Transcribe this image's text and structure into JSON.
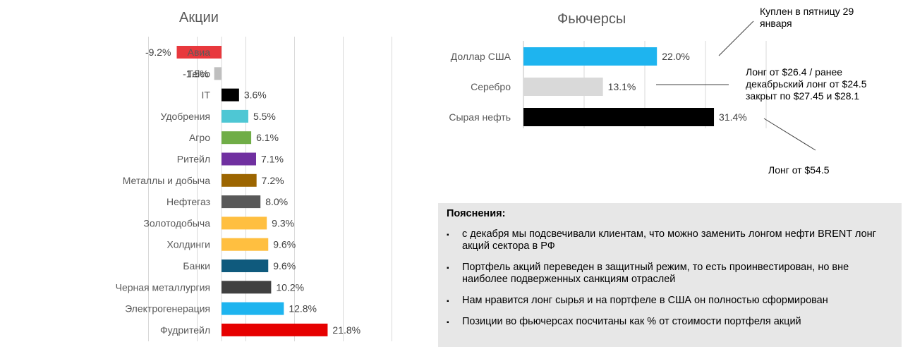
{
  "chart_data": [
    {
      "type": "bar",
      "orientation": "horizontal",
      "title": "Акции",
      "categories": [
        "Авиа",
        "Telco",
        "IT",
        "Удобрения",
        "Агро",
        "Ритейл",
        "Металлы и добыча",
        "Нефтегаз",
        "Золотодобыча",
        "Холдинги",
        "Банки",
        "Черная металлургия",
        "Электрогенерация",
        "Фудритейл"
      ],
      "values": [
        -9.2,
        -1.5,
        3.6,
        5.5,
        6.1,
        7.1,
        7.2,
        8.0,
        9.3,
        9.6,
        9.6,
        10.2,
        12.8,
        21.8
      ],
      "value_labels": [
        "-9.2%",
        "-1.5%",
        "3.6%",
        "5.5%",
        "6.1%",
        "7.1%",
        "7.2%",
        "8.0%",
        "9.3%",
        "9.6%",
        "9.6%",
        "10.2%",
        "12.8%",
        "21.8%"
      ],
      "colors": [
        "#e8383d",
        "#bfbfbf",
        "#000000",
        "#4ec7d4",
        "#70ad47",
        "#7030a0",
        "#9c6500",
        "#595959",
        "#ffbf40",
        "#ffbf40",
        "#0f5a7d",
        "#404040",
        "#1eb4ef",
        "#e60000"
      ],
      "xlim": [
        -15,
        35
      ],
      "grid": true
    },
    {
      "type": "bar",
      "orientation": "horizontal",
      "title": "Фьючерсы",
      "categories": [
        "Доллар США",
        "Серебро",
        "Сырая нефть"
      ],
      "values": [
        22.0,
        13.1,
        31.4
      ],
      "value_labels": [
        "22.0%",
        "13.1%",
        "31.4%"
      ],
      "colors": [
        "#1eb4ef",
        "#d9d9d9",
        "#000000"
      ],
      "xlim": [
        0,
        40
      ],
      "grid": true
    }
  ],
  "callouts": {
    "dollar": "Куплен в пятницу 29 января",
    "silver": "Лонг от $26.4 / ранее декабрьский лонг от $24.5 закрыт по $27.45 и $28.1",
    "oil": "Лонг от $54.5"
  },
  "notes": {
    "title": "Пояснения:",
    "bullet": "▪",
    "items": [
      "с декабря мы подсвечивали клиентам, что можно заменить лонгом нефти BRENT лонг акций сектора в РФ",
      "Портфель акций переведен в защитный режим, то есть проинвестирован, но вне наиболее подверженных санкциям отраслей",
      "Нам нравится лонг сырья и на портфеле в США он полностью сформирован",
      "Позиции во фьючерсах посчитаны как % от стоимости портфеля акций"
    ]
  }
}
